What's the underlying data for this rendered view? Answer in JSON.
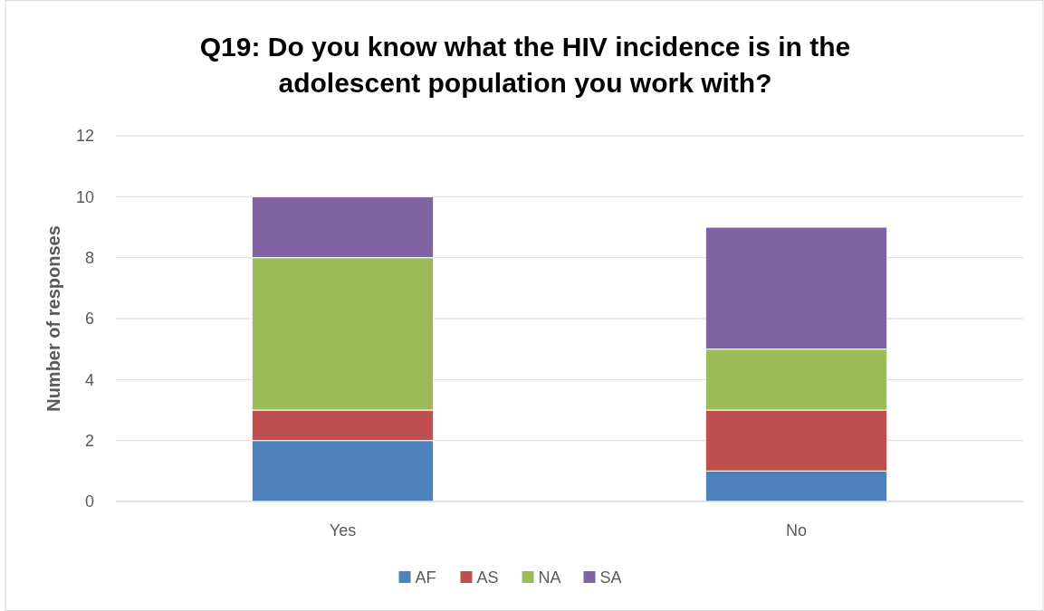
{
  "chart_data": {
    "type": "bar",
    "title": "Q19: Do you know what the HIV incidence is in the adolescent population you work with?",
    "ylabel": "Number of responses",
    "categories": [
      "Yes",
      "No"
    ],
    "stacked": true,
    "series": [
      {
        "name": "AF",
        "color": "#4f81bd",
        "values": [
          2,
          1
        ]
      },
      {
        "name": "AS",
        "color": "#c0504d",
        "values": [
          1,
          2
        ]
      },
      {
        "name": "NA",
        "color": "#9bbb59",
        "values": [
          5,
          2
        ]
      },
      {
        "name": "SA",
        "color": "#8064a2",
        "values": [
          2,
          4
        ]
      }
    ],
    "ylim": [
      0,
      12
    ],
    "yticks": [
      0,
      2,
      4,
      6,
      8,
      10,
      12
    ],
    "grid": "y",
    "legend": "bottom"
  }
}
